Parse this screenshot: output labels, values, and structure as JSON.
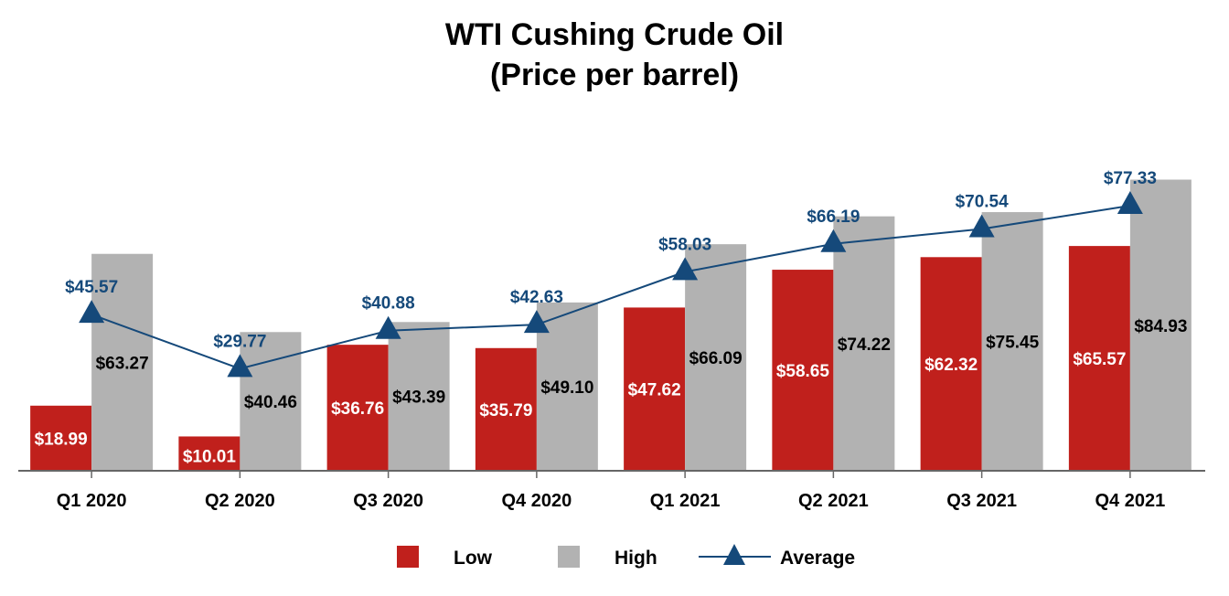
{
  "chart_data": {
    "type": "bar",
    "title": "WTI Cushing Crude Oil",
    "subtitle": "(Price per barrel)",
    "categories": [
      "Q1 2020",
      "Q2 2020",
      "Q3 2020",
      "Q4 2020",
      "Q1 2021",
      "Q2 2021",
      "Q3 2021",
      "Q4 2021"
    ],
    "series": [
      {
        "name": "Low",
        "kind": "bar",
        "color": "#c0201c",
        "values": [
          18.99,
          10.01,
          36.76,
          35.79,
          47.62,
          58.65,
          62.32,
          65.57
        ],
        "labels": [
          "$18.99",
          "$10.01",
          "$36.76",
          "$35.79",
          "$47.62",
          "$58.65",
          "$62.32",
          "$65.57"
        ]
      },
      {
        "name": "High",
        "kind": "bar",
        "color": "#b2b2b2",
        "values": [
          63.27,
          40.46,
          43.39,
          49.1,
          66.09,
          74.22,
          75.45,
          84.93
        ],
        "labels": [
          "$63.27",
          "$40.46",
          "$43.39",
          "$49.10",
          "$66.09",
          "$74.22",
          "$75.45",
          "$84.93"
        ]
      },
      {
        "name": "Average",
        "kind": "line",
        "marker": "triangle",
        "color": "#15497a",
        "values": [
          45.57,
          29.77,
          40.88,
          42.63,
          58.03,
          66.19,
          70.54,
          77.33
        ],
        "labels": [
          "$45.57",
          "$29.77",
          "$40.88",
          "$42.63",
          "$58.03",
          "$66.19",
          "$70.54",
          "$77.33"
        ]
      }
    ],
    "ylim": [
      0,
      90
    ],
    "grid": false,
    "legend_position": "bottom"
  }
}
